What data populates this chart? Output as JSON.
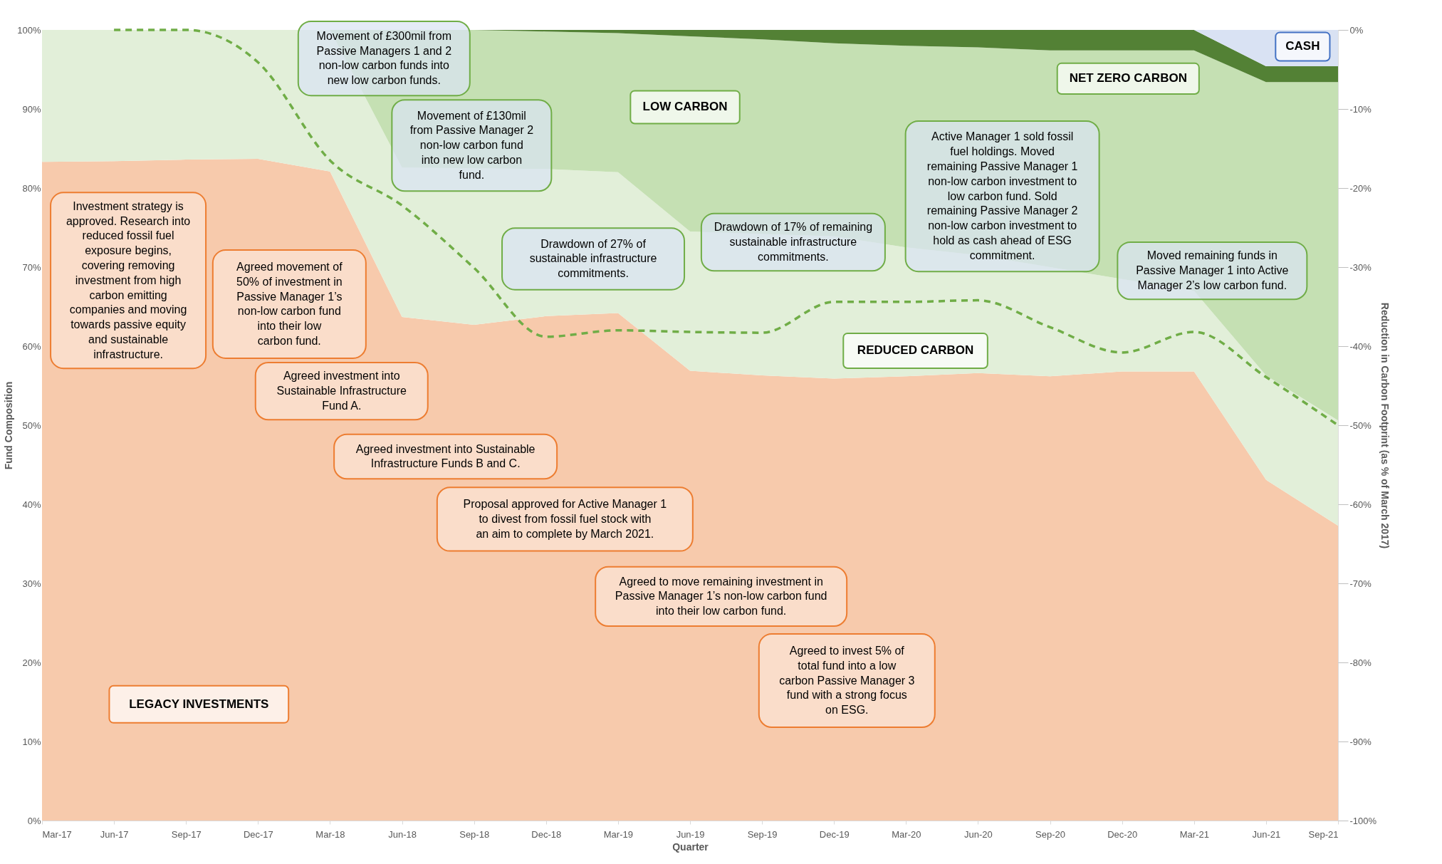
{
  "chart_data": {
    "type": "area",
    "stacked": true,
    "xlabel": "Quarter",
    "ylabel": "Fund Composition",
    "y2label": "Reduction in Carbon Footprint (as % of March 2017)",
    "categories": [
      "Mar-17",
      "Jun-17",
      "Sep-17",
      "Dec-17",
      "Mar-18",
      "Jun-18",
      "Sep-18",
      "Dec-18",
      "Mar-19",
      "Jun-19",
      "Sep-19",
      "Dec-19",
      "Mar-20",
      "Jun-20",
      "Sep-20",
      "Dec-20",
      "Mar-21",
      "Jun-21",
      "Sep-21"
    ],
    "ylim": [
      0,
      100
    ],
    "yticks": [
      {
        "value": 0,
        "label": "0%"
      },
      {
        "value": 10,
        "label": "10%"
      },
      {
        "value": 20,
        "label": "20%"
      },
      {
        "value": 30,
        "label": "30%"
      },
      {
        "value": 40,
        "label": "40%"
      },
      {
        "value": 50,
        "label": "50%"
      },
      {
        "value": 60,
        "label": "60%"
      },
      {
        "value": 70,
        "label": "70%"
      },
      {
        "value": 80,
        "label": "80%"
      },
      {
        "value": 90,
        "label": "90%"
      },
      {
        "value": 100,
        "label": "100%"
      }
    ],
    "y2lim": [
      -100,
      0
    ],
    "y2ticks": [
      {
        "value": -100,
        "label": "-100%"
      },
      {
        "value": -90,
        "label": "-90%"
      },
      {
        "value": -80,
        "label": "-80%"
      },
      {
        "value": -70,
        "label": "-70%"
      },
      {
        "value": -60,
        "label": "-60%"
      },
      {
        "value": -50,
        "label": "-50%"
      },
      {
        "value": -40,
        "label": "-40%"
      },
      {
        "value": -30,
        "label": "-30%"
      },
      {
        "value": -20,
        "label": "-20%"
      },
      {
        "value": -10,
        "label": "-10%"
      },
      {
        "value": 0,
        "label": "0%"
      }
    ],
    "grid": false,
    "series": [
      {
        "name": "LEGACY INVESTMENTS",
        "color": "#f7caac",
        "values": [
          83.3,
          83.4,
          83.6,
          83.7,
          82.1,
          63.7,
          62.7,
          63.8,
          64.2,
          56.9,
          56.3,
          55.9,
          56.2,
          56.6,
          56.2,
          56.8,
          56.8,
          43.1,
          37.3
        ]
      },
      {
        "name": "REDUCED CARBON",
        "color": "#e2efd9",
        "values": [
          16.7,
          16.6,
          16.4,
          16.3,
          17.9,
          18.9,
          19.8,
          18.6,
          17.8,
          17.6,
          17.9,
          18.0,
          16.3,
          14.9,
          13.8,
          11.7,
          10.2,
          13.2,
          13.3
        ]
      },
      {
        "name": "LOW CARBON",
        "color": "#c5e0b3",
        "values": [
          0,
          0,
          0,
          0,
          0,
          17.4,
          17.5,
          17.4,
          17.6,
          24.7,
          24.6,
          24.4,
          25.5,
          26.3,
          27.4,
          28.9,
          30.4,
          37.1,
          42.8
        ]
      },
      {
        "name": "NET ZERO CARBON",
        "color": "#538135",
        "values": [
          0,
          0,
          0,
          0,
          0,
          0,
          0,
          0.2,
          0.4,
          0.8,
          1.2,
          1.7,
          2.0,
          2.2,
          2.6,
          2.6,
          2.6,
          2.0,
          2.0
        ]
      },
      {
        "name": "CASH",
        "color": "#d9e2f3",
        "values": [
          0,
          0,
          0,
          0,
          0,
          0,
          0,
          0,
          0,
          0,
          0,
          0,
          0,
          0,
          0,
          0,
          0,
          4.6,
          4.6
        ]
      },
      {
        "type": "line",
        "axis": "y2",
        "line_style": "dashed",
        "color": "#70ad47",
        "values": [
          null,
          0,
          0,
          -4.1,
          -16.5,
          -22.2,
          -30.1,
          -38.8,
          -38.0,
          -38.2,
          -38.3,
          -34.4,
          -34.4,
          -34.2,
          -37.6,
          -40.8,
          -38.2,
          -43.9,
          -50.0
        ]
      }
    ],
    "annotations": [
      "Investment strategy is approved. Research into reduced fossil fuel exposure begins, covering removing investment from high carbon emitting companies and moving towards passive equity and sustainable infrastructure.",
      "Movement of £300mil from Passive Managers 1 and 2 non-low carbon funds into new low carbon funds.",
      "Movement of £130mil from Passive Manager 2 non-low carbon fund into new low carbon fund.",
      "Agreed movement of 50% of investment in Passive Manager 1’s non-low carbon fund into their low carbon fund.",
      "Agreed investment into Sustainable Infrastructure Fund A.",
      "Agreed investment into Sustainable Infrastructure Funds B and C.",
      "Drawdown of 27% of sustainable infrastructure commitments.",
      "Proposal approved for Active Manager 1 to divest from fossil fuel stock with an aim to complete by March 2021.",
      "Drawdown of 17% of remaining sustainable infrastructure commitments.",
      "Agreed to move remaining investment in Passive Manager 1’s non-low carbon fund into their low carbon fund.",
      "Active Manager 1 sold fossil fuel holdings. Moved remaining Passive Manager 1 non-low carbon investment to low carbon fund. Sold remaining Passive Manager 2 non-low carbon investment to hold as cash ahead of ESG commitment.",
      "Agreed to invest 5% of total fund into a low carbon Passive Manager 3 fund with a strong focus on ESG.",
      "Moved remaining funds in Passive Manager 1 into Active Manager 2’s low carbon fund."
    ]
  }
}
